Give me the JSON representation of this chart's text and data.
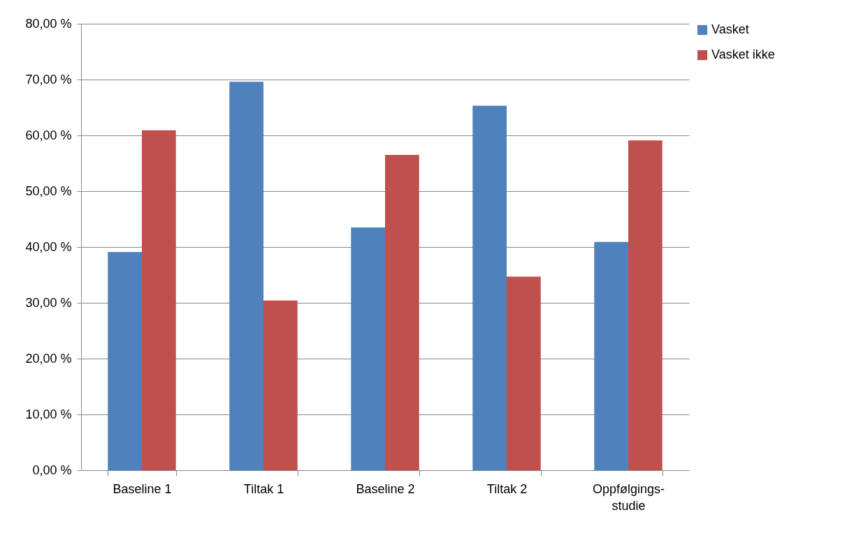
{
  "chart_data": {
    "type": "bar",
    "categories": [
      "Baseline 1",
      "Tiltak 1",
      "Baseline 2",
      "Tiltak 2",
      "Oppfølgings-studie"
    ],
    "series": [
      {
        "name": "Vasket",
        "color": "#4f81bd",
        "values": [
          39.1,
          69.6,
          43.5,
          65.3,
          40.9
        ]
      },
      {
        "name": "Vasket ikke",
        "color": "#c0504d",
        "values": [
          60.9,
          30.4,
          56.5,
          34.7,
          59.1
        ]
      }
    ],
    "ylim": [
      0,
      80
    ],
    "yticks": [
      {
        "value": 0,
        "label": "0,00 %"
      },
      {
        "value": 10,
        "label": "10,00 %"
      },
      {
        "value": 20,
        "label": "20,00 %"
      },
      {
        "value": 30,
        "label": "30,00 %"
      },
      {
        "value": 40,
        "label": "40,00 %"
      },
      {
        "value": 50,
        "label": "50,00 %"
      },
      {
        "value": 60,
        "label": "60,00 %"
      },
      {
        "value": 70,
        "label": "70,00 %"
      },
      {
        "value": 80,
        "label": "80,00 %"
      }
    ],
    "grid": "y",
    "legend": "right"
  }
}
